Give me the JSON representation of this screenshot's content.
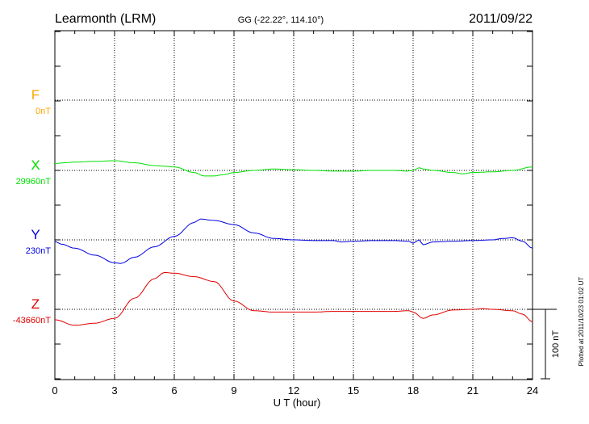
{
  "header": {
    "station": "Learmonth (LRM)",
    "coords": "GG (-22.22°, 114.10°)",
    "date": "2011/09/22"
  },
  "plotted_note": "Plotted at 2011/10/23 01:02 UT",
  "chart_data": {
    "type": "line",
    "xlabel": "U T (hour)",
    "xlim": [
      0,
      24
    ],
    "x_ticks": [
      "0",
      "3",
      "6",
      "9",
      "12",
      "15",
      "18",
      "21",
      "24"
    ],
    "scale_bar": "100 nT",
    "grid": true,
    "series": [
      {
        "name": "F",
        "baseline": "0nT",
        "color": "#ffa500",
        "points": []
      },
      {
        "name": "X",
        "baseline": "29960nT",
        "color": "#00e000",
        "points": [
          [
            0,
            10
          ],
          [
            0.5,
            11
          ],
          [
            1,
            12
          ],
          [
            2,
            13
          ],
          [
            3,
            14
          ],
          [
            4,
            11
          ],
          [
            5,
            7
          ],
          [
            5.5,
            6
          ],
          [
            6,
            5
          ],
          [
            7,
            -3
          ],
          [
            7.5,
            -8
          ],
          [
            8,
            -8
          ],
          [
            8.5,
            -6
          ],
          [
            9,
            -3
          ],
          [
            10,
            0
          ],
          [
            11,
            2
          ],
          [
            12,
            1
          ],
          [
            13,
            0
          ],
          [
            14,
            -1
          ],
          [
            15,
            -1
          ],
          [
            16,
            0
          ],
          [
            17,
            0
          ],
          [
            17.7,
            -1
          ],
          [
            18,
            0
          ],
          [
            18.3,
            4
          ],
          [
            18.5,
            2
          ],
          [
            19,
            0
          ],
          [
            20,
            -3
          ],
          [
            20.5,
            -5
          ],
          [
            21,
            -3
          ],
          [
            22,
            -2
          ],
          [
            23,
            0
          ],
          [
            24,
            5
          ]
        ]
      },
      {
        "name": "Y",
        "baseline": "230nT",
        "color": "#0000e0",
        "points": [
          [
            0,
            -2
          ],
          [
            0.3,
            -6
          ],
          [
            1,
            -12
          ],
          [
            2,
            -22
          ],
          [
            3,
            -33
          ],
          [
            3.3,
            -34
          ],
          [
            4,
            -25
          ],
          [
            5,
            -10
          ],
          [
            6,
            5
          ],
          [
            7,
            25
          ],
          [
            7.3,
            30
          ],
          [
            8,
            28
          ],
          [
            9,
            22
          ],
          [
            10,
            10
          ],
          [
            11,
            2
          ],
          [
            12,
            0
          ],
          [
            13,
            -1
          ],
          [
            14,
            -1
          ],
          [
            14.4,
            -3
          ],
          [
            15,
            -2
          ],
          [
            16,
            -1
          ],
          [
            17,
            -1
          ],
          [
            17.8,
            -2
          ],
          [
            18,
            -5
          ],
          [
            18.3,
            0
          ],
          [
            18.5,
            -7
          ],
          [
            19,
            -3
          ],
          [
            20,
            -2
          ],
          [
            21,
            -1
          ],
          [
            22,
            0
          ],
          [
            22.5,
            2
          ],
          [
            23,
            3
          ],
          [
            23.5,
            -2
          ],
          [
            24,
            -12
          ]
        ]
      },
      {
        "name": "Z",
        "baseline": "-43660nT",
        "color": "#e00000",
        "points": [
          [
            0,
            -15
          ],
          [
            1,
            -23
          ],
          [
            2,
            -20
          ],
          [
            3,
            -13
          ],
          [
            4,
            16
          ],
          [
            5,
            44
          ],
          [
            5.5,
            53
          ],
          [
            6,
            52
          ],
          [
            7,
            47
          ],
          [
            8,
            40
          ],
          [
            9,
            12
          ],
          [
            10,
            -2
          ],
          [
            11,
            -4
          ],
          [
            12,
            -4
          ],
          [
            13,
            -4
          ],
          [
            14,
            -3
          ],
          [
            15,
            -3
          ],
          [
            16,
            -3
          ],
          [
            17,
            -3
          ],
          [
            17.8,
            -2
          ],
          [
            18,
            -4
          ],
          [
            18.5,
            -13
          ],
          [
            19,
            -8
          ],
          [
            20,
            -1
          ],
          [
            21,
            0
          ],
          [
            21.5,
            1
          ],
          [
            22,
            0
          ],
          [
            23,
            -2
          ],
          [
            23.5,
            -7
          ],
          [
            24,
            -18
          ]
        ]
      }
    ]
  }
}
